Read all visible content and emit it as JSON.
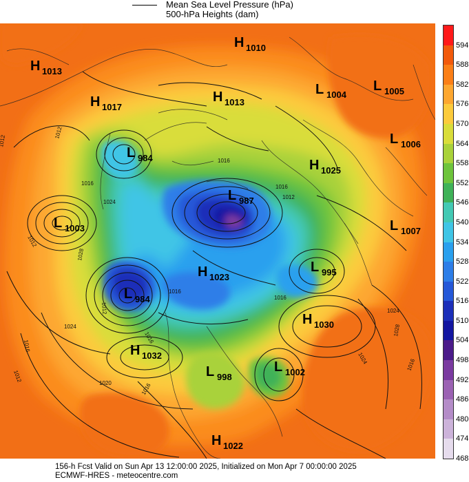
{
  "legend": {
    "line1": "Mean Sea Level Pressure (hPa)",
    "line2": "500-hPa Heights (dam)"
  },
  "footer": {
    "line1": "156-h Fcst Valid on Sun Apr 13 12:00:00 2025, Initialized on Mon Apr  7 00:00:00 2025",
    "line2": "ECMWF-HRES  - meteocentre.com"
  },
  "colorbar": {
    "levels": [
      "594",
      "588",
      "582",
      "576",
      "570",
      "564",
      "558",
      "552",
      "546",
      "540",
      "534",
      "528",
      "522",
      "516",
      "510",
      "504",
      "498",
      "492",
      "486",
      "480",
      "474",
      "468"
    ],
    "colors": [
      "#ff1a1a",
      "#f25a0c",
      "#fb7f17",
      "#fda730",
      "#fccb3c",
      "#d9dd3a",
      "#a9d23a",
      "#6ec43c",
      "#3fb258",
      "#43c9b4",
      "#3fc5e6",
      "#2aa0ee",
      "#2d7ee8",
      "#2558d8",
      "#1c2fb9",
      "#1316a1",
      "#4b1b8a",
      "#7a3aa0",
      "#9b62b3",
      "#b48cc8",
      "#ccb3da",
      "#e6dced"
    ]
  },
  "pressure_centers": [
    {
      "type": "H",
      "value": "1010",
      "label": "H 1010"
    },
    {
      "type": "H",
      "value": "1013",
      "label": "H 1013"
    },
    {
      "type": "H",
      "value": "1017",
      "label": "H 1017"
    },
    {
      "type": "H",
      "value": "1013",
      "label": "H 1013"
    },
    {
      "type": "L",
      "value": "1004",
      "label": "L 1004"
    },
    {
      "type": "L",
      "value": "1005",
      "label": "L 1005"
    },
    {
      "type": "L",
      "value": "1006",
      "label": "L 1006"
    },
    {
      "type": "L",
      "value": "984",
      "label": "L 984"
    },
    {
      "type": "H",
      "value": "1025",
      "label": "H 1025"
    },
    {
      "type": "L",
      "value": "987",
      "label": "L 987"
    },
    {
      "type": "L",
      "value": "1003",
      "label": "L 1003"
    },
    {
      "type": "L",
      "value": "1007",
      "label": "L 1007"
    },
    {
      "type": "H",
      "value": "1023",
      "label": "H 1023"
    },
    {
      "type": "L",
      "value": "995",
      "label": "L 995"
    },
    {
      "type": "L",
      "value": "984",
      "label": "L 984"
    },
    {
      "type": "H",
      "value": "1030",
      "label": "H 1030"
    },
    {
      "type": "H",
      "value": "1032",
      "label": "H 1032"
    },
    {
      "type": "L",
      "value": "1002",
      "label": "L 1002"
    },
    {
      "type": "L",
      "value": "998",
      "label": "L 998"
    },
    {
      "type": "H",
      "value": "1022",
      "label": "H 1022"
    }
  ],
  "isobar_labels": [
    "1012",
    "1012",
    "1016",
    "1024",
    "1012",
    "1028",
    "1012",
    "1016",
    "1024",
    "1016",
    "1016",
    "1012",
    "1016",
    "1020",
    "1016",
    "1024",
    "1016",
    "1016",
    "1012",
    "1028",
    "1024",
    "1016"
  ]
}
